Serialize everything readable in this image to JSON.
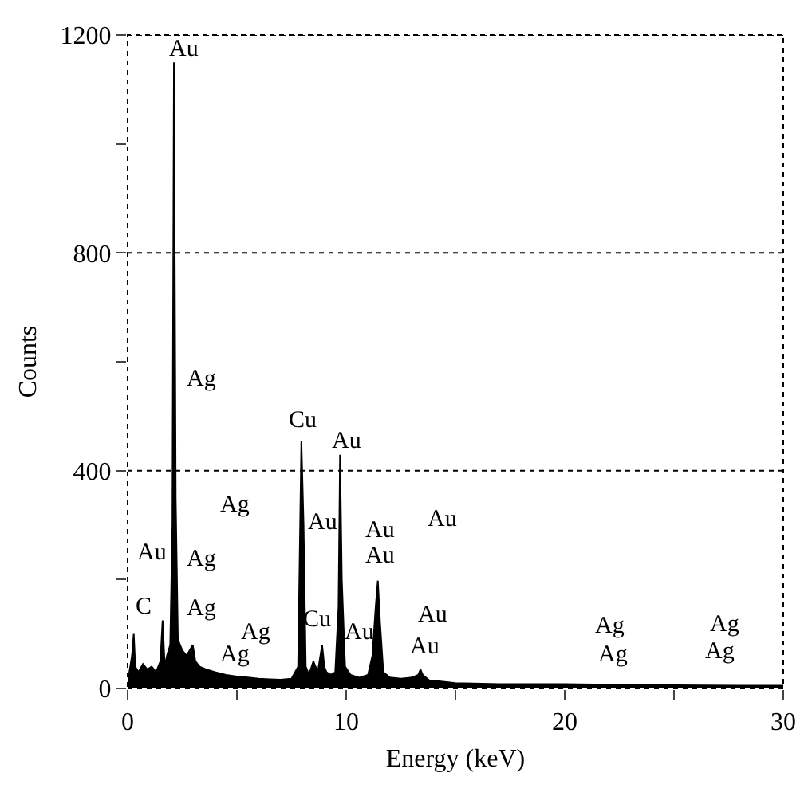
{
  "chart_data": {
    "type": "area",
    "xlabel": "Energy (keV)",
    "ylabel": "Counts",
    "x": [
      0,
      0.2,
      0.28,
      0.35,
      0.5,
      0.7,
      0.9,
      1.1,
      1.3,
      1.5,
      1.6,
      1.7,
      1.8,
      1.95,
      2.05,
      2.12,
      2.2,
      2.3,
      2.5,
      2.7,
      2.98,
      3.1,
      3.3,
      3.6,
      4,
      4.5,
      5,
      5.5,
      6,
      6.5,
      7,
      7.5,
      7.8,
      7.95,
      8.05,
      8.15,
      8.3,
      8.5,
      8.7,
      8.9,
      9.0,
      9.1,
      9.3,
      9.5,
      9.65,
      9.72,
      9.8,
      9.95,
      10.2,
      10.6,
      11.0,
      11.2,
      11.35,
      11.45,
      11.55,
      11.7,
      12,
      12.5,
      13,
      13.3,
      13.4,
      13.5,
      13.8,
      14.5,
      15,
      17,
      20,
      22,
      25,
      28,
      30
    ],
    "series": [
      {
        "color": "#000000",
        "values": [
          10,
          60,
          100,
          40,
          30,
          45,
          35,
          40,
          30,
          50,
          125,
          40,
          60,
          80,
          300,
          1150,
          350,
          90,
          70,
          60,
          80,
          50,
          40,
          35,
          30,
          25,
          22,
          20,
          18,
          17,
          16,
          18,
          40,
          454,
          300,
          40,
          25,
          50,
          30,
          80,
          40,
          30,
          25,
          30,
          150,
          429,
          200,
          40,
          25,
          20,
          25,
          60,
          150,
          198,
          120,
          30,
          20,
          18,
          20,
          25,
          35,
          25,
          15,
          12,
          10,
          8,
          8,
          7,
          6,
          5,
          5
        ]
      }
    ],
    "xlim": [
      0,
      30
    ],
    "xticks": [
      0,
      {
        "value": 5,
        "label": null
      },
      10,
      {
        "value": 15,
        "label": null
      },
      20,
      {
        "value": 25,
        "label": null
      },
      30
    ],
    "ylim": [
      0,
      1200
    ],
    "yticks": [
      0,
      {
        "value": 200,
        "label": null
      },
      400,
      {
        "value": 600,
        "label": null
      },
      800,
      {
        "value": 1000,
        "label": null
      },
      1200
    ],
    "grid": "y",
    "annotations": [
      "C",
      "Au",
      "Ag",
      "Ag",
      "Au",
      "Ag",
      "Ag",
      "Ag",
      "Ag",
      "Cu",
      "Au",
      "Au",
      "Cu",
      "Au",
      "Au",
      "Au",
      "Au",
      "Au",
      "Au",
      "Ag",
      "Ag",
      "Ag",
      "Ag"
    ]
  }
}
